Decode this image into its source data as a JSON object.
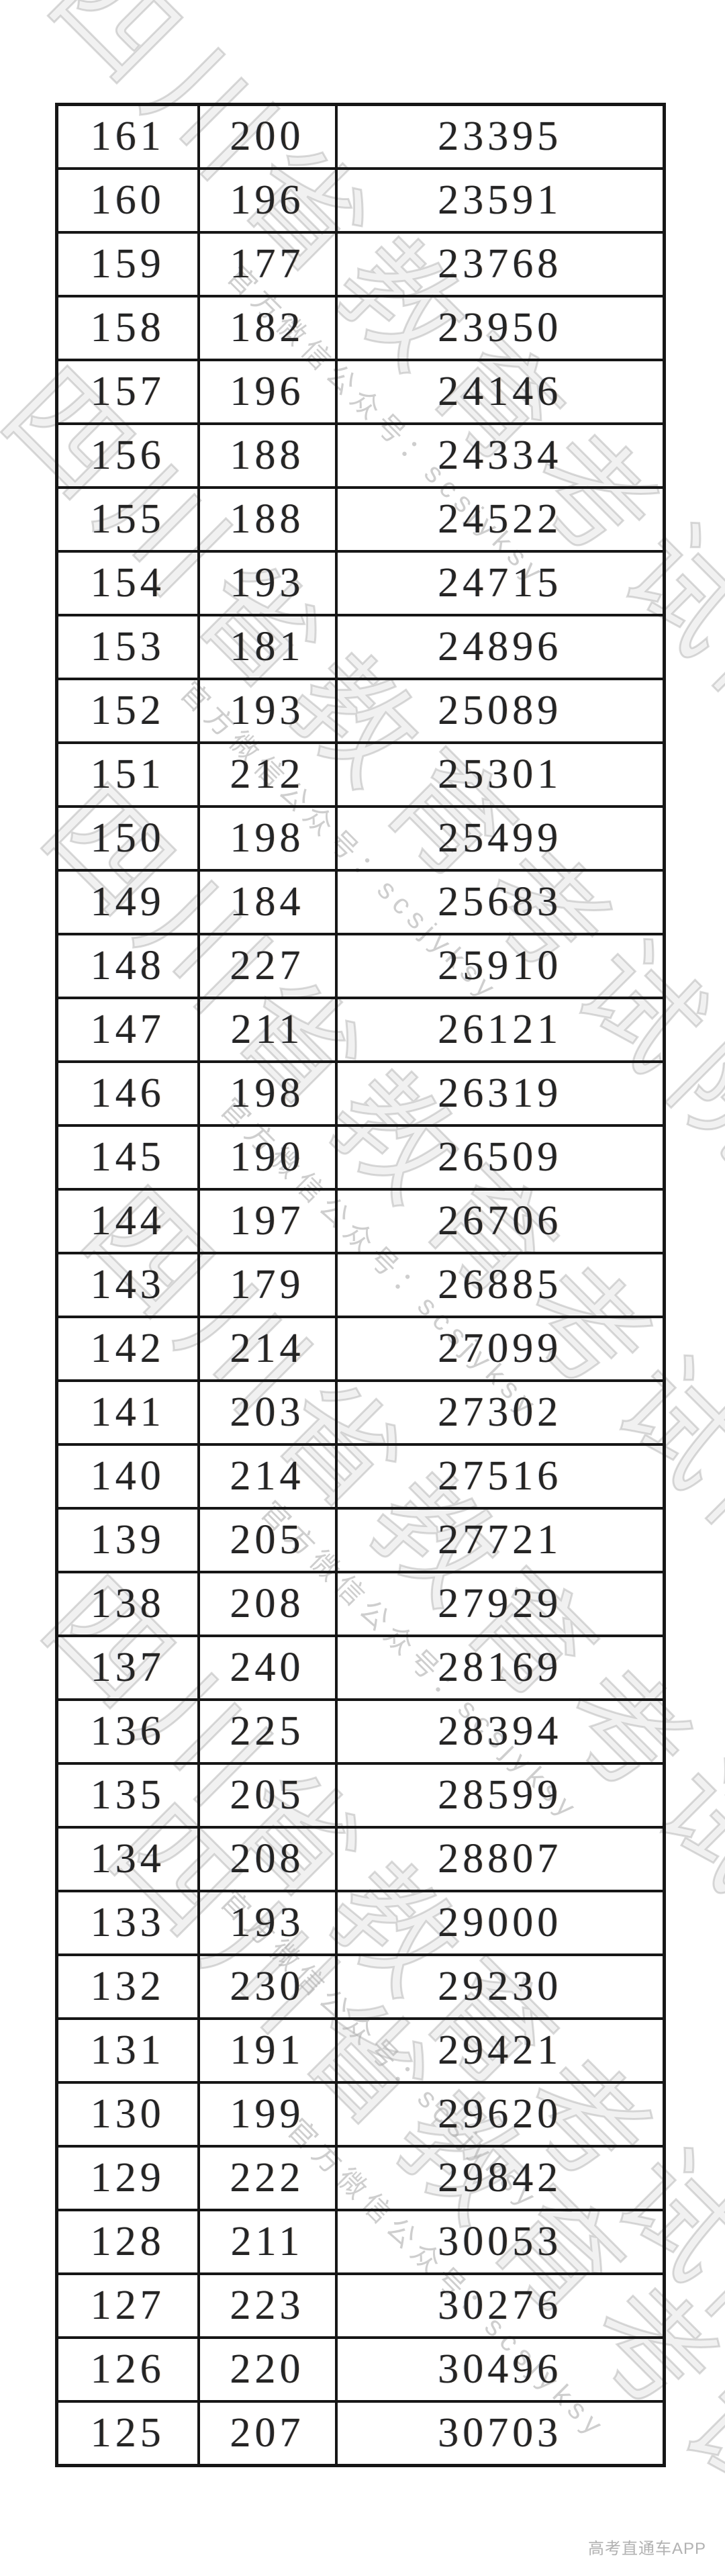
{
  "colors": {
    "border": "#161616",
    "cell_text": "#242424",
    "watermark_gray": "#b4b4b4",
    "footer_text": "#b2b2b2",
    "background": "#ffffff"
  },
  "watermark": {
    "big_text": "四川省教育考试院",
    "small_text": "官方微信公众号：scsjyksy"
  },
  "footer": {
    "app_label": "高考直通车APP"
  },
  "table": {
    "rows": [
      [
        "161",
        "200",
        "23395"
      ],
      [
        "160",
        "196",
        "23591"
      ],
      [
        "159",
        "177",
        "23768"
      ],
      [
        "158",
        "182",
        "23950"
      ],
      [
        "157",
        "196",
        "24146"
      ],
      [
        "156",
        "188",
        "24334"
      ],
      [
        "155",
        "188",
        "24522"
      ],
      [
        "154",
        "193",
        "24715"
      ],
      [
        "153",
        "181",
        "24896"
      ],
      [
        "152",
        "193",
        "25089"
      ],
      [
        "151",
        "212",
        "25301"
      ],
      [
        "150",
        "198",
        "25499"
      ],
      [
        "149",
        "184",
        "25683"
      ],
      [
        "148",
        "227",
        "25910"
      ],
      [
        "147",
        "211",
        "26121"
      ],
      [
        "146",
        "198",
        "26319"
      ],
      [
        "145",
        "190",
        "26509"
      ],
      [
        "144",
        "197",
        "26706"
      ],
      [
        "143",
        "179",
        "26885"
      ],
      [
        "142",
        "214",
        "27099"
      ],
      [
        "141",
        "203",
        "27302"
      ],
      [
        "140",
        "214",
        "27516"
      ],
      [
        "139",
        "205",
        "27721"
      ],
      [
        "138",
        "208",
        "27929"
      ],
      [
        "137",
        "240",
        "28169"
      ],
      [
        "136",
        "225",
        "28394"
      ],
      [
        "135",
        "205",
        "28599"
      ],
      [
        "134",
        "208",
        "28807"
      ],
      [
        "133",
        "193",
        "29000"
      ],
      [
        "132",
        "230",
        "29230"
      ],
      [
        "131",
        "191",
        "29421"
      ],
      [
        "130",
        "199",
        "29620"
      ],
      [
        "129",
        "222",
        "29842"
      ],
      [
        "128",
        "211",
        "30053"
      ],
      [
        "127",
        "223",
        "30276"
      ],
      [
        "126",
        "220",
        "30496"
      ],
      [
        "125",
        "207",
        "30703"
      ]
    ]
  }
}
